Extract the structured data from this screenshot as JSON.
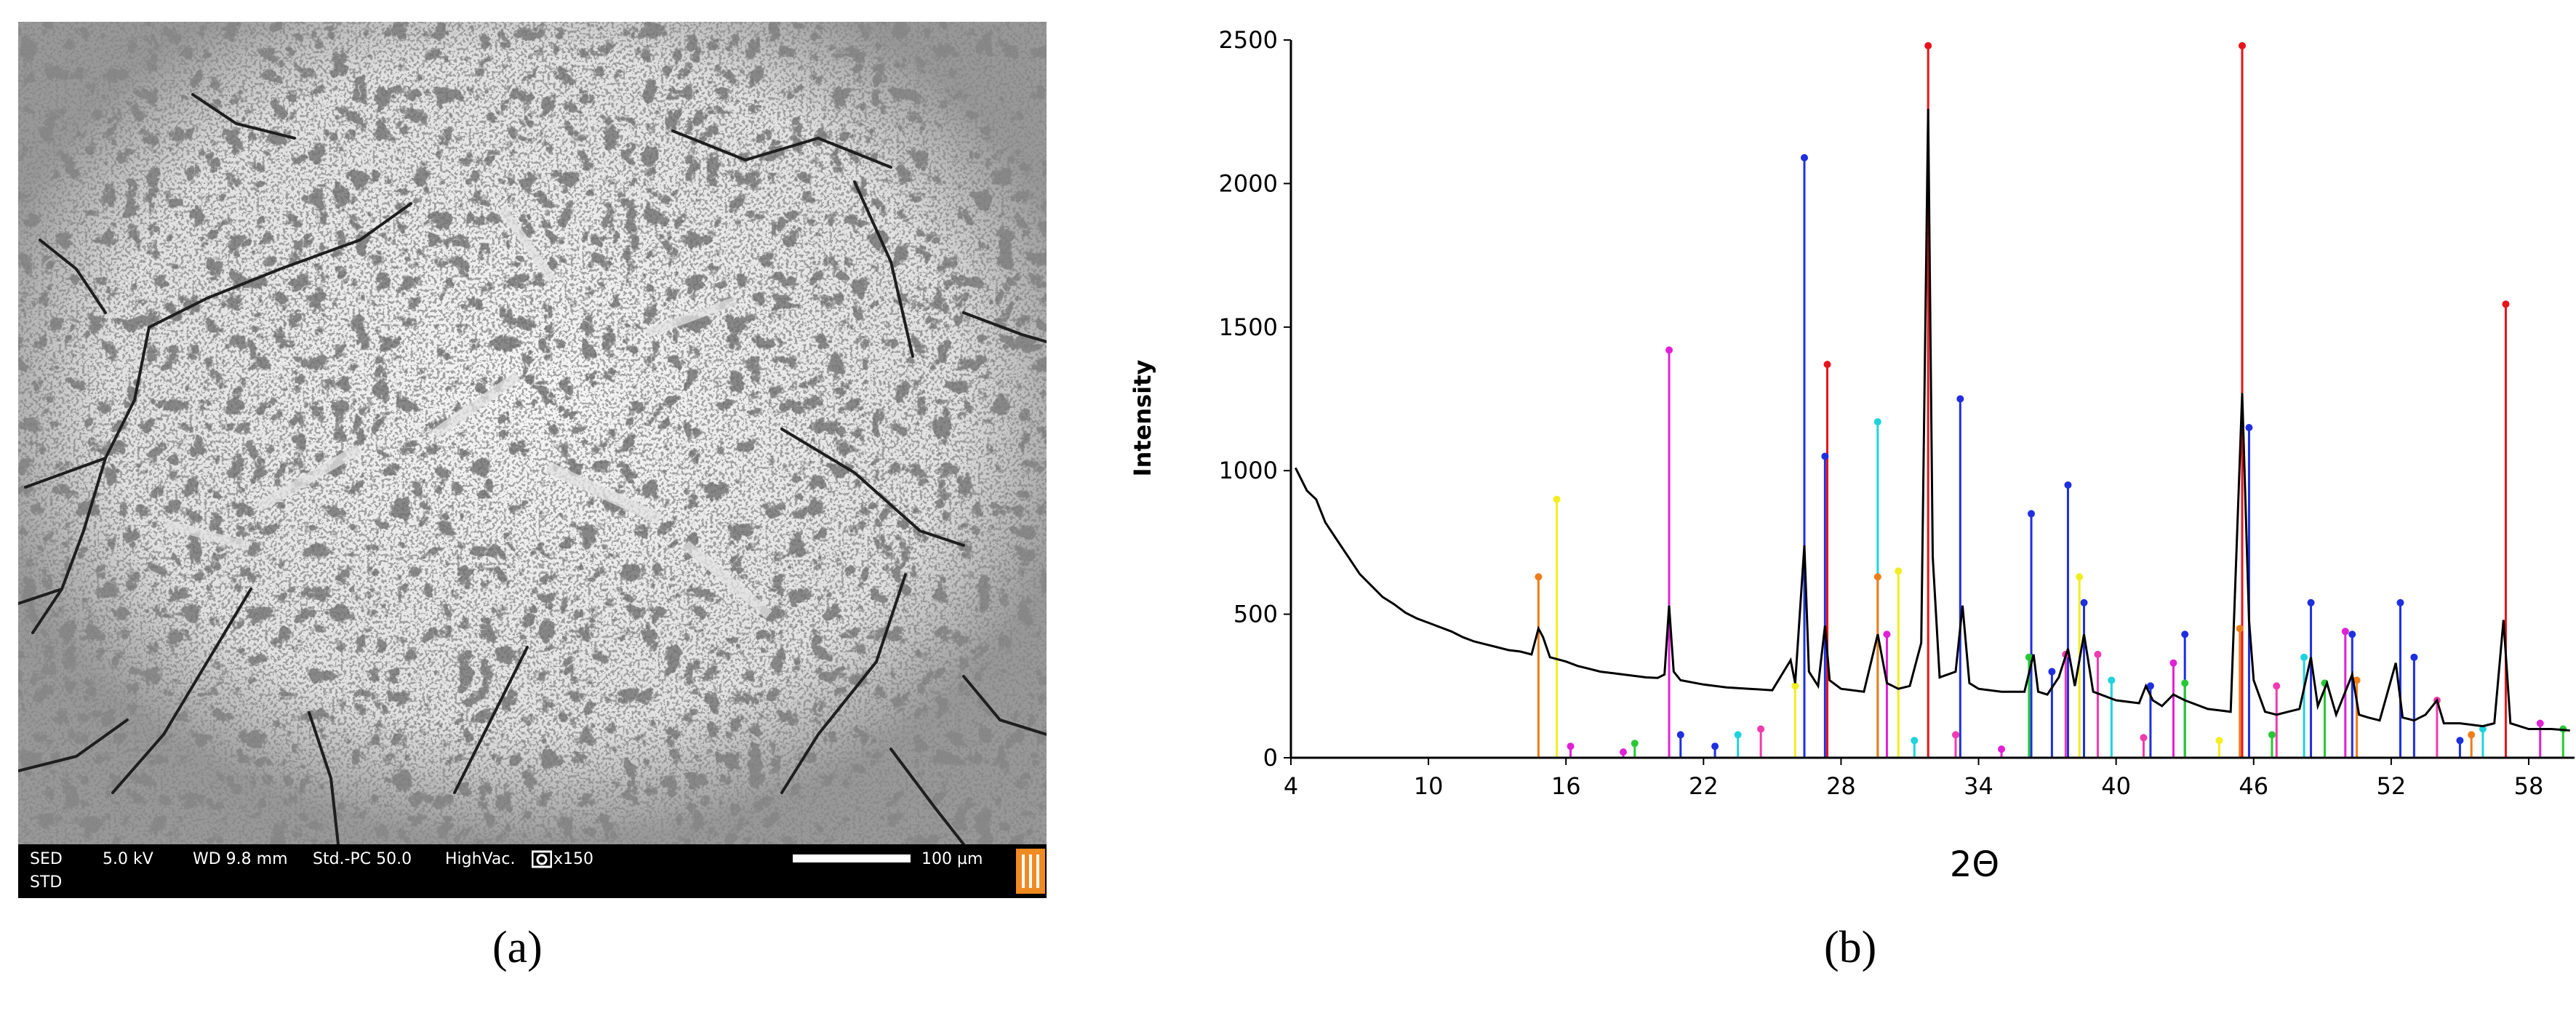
{
  "panel_a": {
    "label": "(a)",
    "info_bar": {
      "mode": "SED",
      "mode2": "STD",
      "voltage": "5.0 kV",
      "wd": "WD 9.8 mm",
      "std": "Std.-PC 50.0",
      "vac": "HighVac.",
      "mag": "x150",
      "scale": "100 µm"
    },
    "icons": [
      "camera-icon",
      "jeol-logo"
    ]
  },
  "panel_b": {
    "label": "(b)"
  },
  "colors": {
    "pattern": "#000000",
    "red": "#e8131b",
    "blue": "#1f2fe0",
    "magenta": "#e021d6",
    "cyan": "#1fd3de",
    "yellow": "#f2ee20",
    "orange": "#ef7d18",
    "green": "#26c934",
    "pink": "#f03ab0"
  },
  "chart_data": {
    "type": "line",
    "xlabel": "2Θ",
    "ylabel": "Intensity",
    "xlim": [
      4,
      60
    ],
    "ylim": [
      0,
      2500
    ],
    "xticks": [
      4,
      10,
      16,
      22,
      28,
      34,
      40,
      46,
      52,
      58
    ],
    "yticks": [
      0,
      500,
      1000,
      1500,
      2000,
      2500
    ],
    "series": [
      {
        "values": [
          [
            4.2,
            1010
          ],
          [
            4.7,
            930
          ],
          [
            5.1,
            900
          ],
          [
            5.5,
            820
          ],
          [
            6,
            760
          ],
          [
            6.5,
            700
          ],
          [
            7,
            640
          ],
          [
            7.5,
            600
          ],
          [
            8,
            560
          ],
          [
            8.5,
            535
          ],
          [
            9,
            505
          ],
          [
            9.5,
            485
          ],
          [
            10,
            470
          ],
          [
            10.5,
            455
          ],
          [
            11,
            440
          ],
          [
            11.5,
            420
          ],
          [
            12,
            405
          ],
          [
            12.5,
            395
          ],
          [
            13,
            385
          ],
          [
            13.5,
            375
          ],
          [
            14,
            370
          ],
          [
            14.5,
            360
          ],
          [
            14.8,
            450
          ],
          [
            15,
            420
          ],
          [
            15.3,
            350
          ],
          [
            16,
            335
          ],
          [
            16.5,
            320
          ],
          [
            17,
            310
          ],
          [
            17.5,
            300
          ],
          [
            18,
            295
          ],
          [
            18.5,
            290
          ],
          [
            19,
            285
          ],
          [
            19.5,
            280
          ],
          [
            20,
            278
          ],
          [
            20.3,
            290
          ],
          [
            20.5,
            530
          ],
          [
            20.7,
            300
          ],
          [
            21,
            270
          ],
          [
            22,
            255
          ],
          [
            23,
            245
          ],
          [
            24,
            240
          ],
          [
            25,
            235
          ],
          [
            25.8,
            340
          ],
          [
            26,
            260
          ],
          [
            26.4,
            740
          ],
          [
            26.6,
            300
          ],
          [
            27,
            250
          ],
          [
            27.3,
            460
          ],
          [
            27.5,
            270
          ],
          [
            28,
            240
          ],
          [
            29,
            230
          ],
          [
            29.6,
            430
          ],
          [
            30,
            260
          ],
          [
            30.5,
            240
          ],
          [
            31,
            250
          ],
          [
            31.5,
            400
          ],
          [
            31.8,
            2260
          ],
          [
            32,
            700
          ],
          [
            32.3,
            280
          ],
          [
            33,
            300
          ],
          [
            33.3,
            530
          ],
          [
            33.6,
            260
          ],
          [
            34,
            240
          ],
          [
            35,
            230
          ],
          [
            36,
            230
          ],
          [
            36.4,
            360
          ],
          [
            36.6,
            230
          ],
          [
            37,
            220
          ],
          [
            37.5,
            280
          ],
          [
            37.9,
            380
          ],
          [
            38.2,
            250
          ],
          [
            38.6,
            430
          ],
          [
            39,
            230
          ],
          [
            40,
            200
          ],
          [
            41,
            190
          ],
          [
            41.3,
            250
          ],
          [
            41.6,
            200
          ],
          [
            42,
            180
          ],
          [
            42.5,
            220
          ],
          [
            43,
            200
          ],
          [
            44,
            170
          ],
          [
            45,
            160
          ],
          [
            45.5,
            1270
          ],
          [
            45.8,
            480
          ],
          [
            46,
            270
          ],
          [
            46.5,
            160
          ],
          [
            47,
            150
          ],
          [
            47.5,
            160
          ],
          [
            48,
            170
          ],
          [
            48.5,
            350
          ],
          [
            48.8,
            180
          ],
          [
            49.2,
            260
          ],
          [
            49.6,
            150
          ],
          [
            50.3,
            290
          ],
          [
            50.6,
            150
          ],
          [
            51,
            140
          ],
          [
            51.5,
            130
          ],
          [
            52.2,
            330
          ],
          [
            52.5,
            140
          ],
          [
            53,
            130
          ],
          [
            53.5,
            150
          ],
          [
            54,
            200
          ],
          [
            54.3,
            120
          ],
          [
            55,
            120
          ],
          [
            56,
            110
          ],
          [
            56.5,
            120
          ],
          [
            56.9,
            480
          ],
          [
            57.2,
            120
          ],
          [
            58,
            100
          ],
          [
            59,
            100
          ],
          [
            59.8,
            95
          ]
        ]
      }
    ],
    "reference_lines": [
      {
        "color": "red",
        "x": 31.8,
        "y": 2480
      },
      {
        "color": "red",
        "x": 45.5,
        "y": 2480
      },
      {
        "color": "red",
        "x": 57.0,
        "y": 1580
      },
      {
        "color": "red",
        "x": 27.4,
        "y": 1370
      },
      {
        "color": "blue",
        "x": 26.4,
        "y": 2090
      },
      {
        "color": "blue",
        "x": 33.2,
        "y": 1250
      },
      {
        "color": "blue",
        "x": 45.8,
        "y": 1150
      },
      {
        "color": "blue",
        "x": 27.3,
        "y": 1050
      },
      {
        "color": "blue",
        "x": 37.9,
        "y": 950
      },
      {
        "color": "blue",
        "x": 36.3,
        "y": 850
      },
      {
        "color": "blue",
        "x": 38.6,
        "y": 540
      },
      {
        "color": "blue",
        "x": 48.5,
        "y": 540
      },
      {
        "color": "blue",
        "x": 52.4,
        "y": 540
      },
      {
        "color": "blue",
        "x": 43.0,
        "y": 430
      },
      {
        "color": "blue",
        "x": 50.3,
        "y": 430
      },
      {
        "color": "blue",
        "x": 53.0,
        "y": 350
      },
      {
        "color": "blue",
        "x": 37.2,
        "y": 300
      },
      {
        "color": "blue",
        "x": 41.5,
        "y": 250
      },
      {
        "color": "magenta",
        "x": 20.5,
        "y": 1420
      },
      {
        "color": "magenta",
        "x": 30.0,
        "y": 430
      },
      {
        "color": "magenta",
        "x": 50.0,
        "y": 440
      },
      {
        "color": "magenta",
        "x": 42.5,
        "y": 330
      },
      {
        "color": "cyan",
        "x": 29.6,
        "y": 1170
      },
      {
        "color": "cyan",
        "x": 39.8,
        "y": 270
      },
      {
        "color": "cyan",
        "x": 48.2,
        "y": 350
      },
      {
        "color": "yellow",
        "x": 15.6,
        "y": 900
      },
      {
        "color": "yellow",
        "x": 30.5,
        "y": 650
      },
      {
        "color": "yellow",
        "x": 38.4,
        "y": 630
      },
      {
        "color": "yellow",
        "x": 26.0,
        "y": 250
      },
      {
        "color": "orange",
        "x": 14.8,
        "y": 630
      },
      {
        "color": "orange",
        "x": 29.6,
        "y": 630
      },
      {
        "color": "orange",
        "x": 45.4,
        "y": 450
      },
      {
        "color": "orange",
        "x": 50.5,
        "y": 270
      },
      {
        "color": "green",
        "x": 36.2,
        "y": 350
      },
      {
        "color": "green",
        "x": 49.1,
        "y": 260
      },
      {
        "color": "green",
        "x": 43.0,
        "y": 260
      },
      {
        "color": "green",
        "x": 19.0,
        "y": 50
      },
      {
        "color": "pink",
        "x": 37.8,
        "y": 360
      },
      {
        "color": "pink",
        "x": 39.2,
        "y": 360
      },
      {
        "color": "pink",
        "x": 47.0,
        "y": 250
      },
      {
        "color": "pink",
        "x": 54.0,
        "y": 200
      },
      {
        "color": "pink",
        "x": 24.5,
        "y": 100
      },
      {
        "color": "pink",
        "x": 33.0,
        "y": 80
      },
      {
        "color": "cyan",
        "x": 23.5,
        "y": 80
      },
      {
        "color": "blue",
        "x": 21.0,
        "y": 80
      },
      {
        "color": "blue",
        "x": 22.5,
        "y": 40
      },
      {
        "color": "magenta",
        "x": 16.2,
        "y": 40
      },
      {
        "color": "magenta",
        "x": 18.5,
        "y": 20
      },
      {
        "color": "cyan",
        "x": 56.0,
        "y": 100
      },
      {
        "color": "green",
        "x": 59.5,
        "y": 100
      },
      {
        "color": "magenta",
        "x": 58.5,
        "y": 120
      },
      {
        "color": "orange",
        "x": 55.5,
        "y": 80
      },
      {
        "color": "yellow",
        "x": 44.5,
        "y": 60
      },
      {
        "color": "magenta",
        "x": 35.0,
        "y": 30
      },
      {
        "color": "cyan",
        "x": 31.2,
        "y": 60
      },
      {
        "color": "pink",
        "x": 41.2,
        "y": 70
      },
      {
        "color": "green",
        "x": 46.8,
        "y": 80
      },
      {
        "color": "blue",
        "x": 55.0,
        "y": 60
      }
    ]
  }
}
